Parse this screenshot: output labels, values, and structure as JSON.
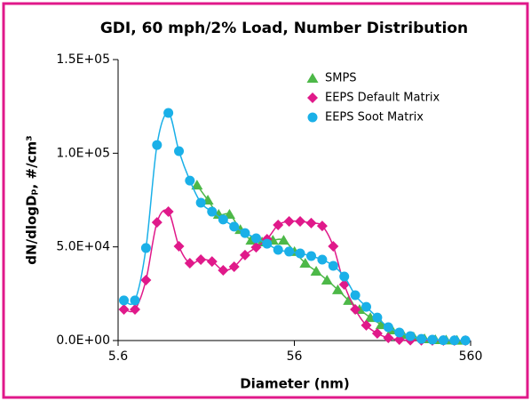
{
  "chart_data": {
    "type": "line",
    "title": "GDI, 60 mph/2% Load, Number Distribution",
    "x_label": "Diameter (nm)",
    "y_label": "dN/dlogDₚ, #/cm³",
    "xscale": "log",
    "xlim": [
      5.6,
      560
    ],
    "xticks": [
      5.6,
      56,
      560
    ],
    "ylim": [
      0,
      150000
    ],
    "yticks": [
      {
        "value": 0,
        "label": "0.0E+00"
      },
      {
        "value": 50000,
        "label": "5.0E+04"
      },
      {
        "value": 100000,
        "label": "1.0E+05"
      },
      {
        "value": 150000,
        "label": "1.5E+05"
      }
    ],
    "legend": "top-right",
    "series": [
      {
        "name": "SMPS",
        "color": "#4db848",
        "marker": "triangle",
        "x": [
          15.7,
          18.09,
          20.84,
          24.0,
          27.65,
          31.86,
          36.7,
          42.3,
          48.7,
          56.1,
          64.6,
          74.5,
          85.8,
          98.8,
          113.9,
          131.2,
          151.1,
          174.1,
          200.5,
          231,
          266.2,
          306.6,
          353.2,
          406.9,
          468.8
        ],
        "values": [
          83000,
          75000,
          67400,
          67400,
          59300,
          53600,
          52700,
          53600,
          53600,
          47500,
          41300,
          37000,
          32300,
          27100,
          21400,
          16600,
          12300,
          8500,
          5700,
          3300,
          1900,
          950,
          500,
          300,
          150
        ]
      },
      {
        "name": "EEPS Default Matrix",
        "color": "#e0198a",
        "marker": "diamond",
        "x": [
          6.04,
          6.98,
          8.06,
          9.31,
          10.8,
          12.4,
          14.3,
          16.5,
          19.1,
          22.1,
          25.5,
          29.4,
          34.0,
          39.2,
          45.3,
          52.3,
          60.4,
          69.8,
          80.6,
          93.1,
          107.5,
          124.1,
          143.3,
          165.5,
          191.1,
          220.7,
          254.8,
          294.3,
          339.8,
          392.4,
          453.2,
          523.3
        ],
        "values": [
          16600,
          16600,
          32300,
          63100,
          68800,
          50300,
          41300,
          43200,
          42200,
          37500,
          39400,
          45600,
          49800,
          54100,
          61700,
          63600,
          63600,
          62700,
          61200,
          50300,
          29900,
          16600,
          8100,
          3800,
          1400,
          500,
          200,
          100,
          50,
          0,
          0,
          0
        ]
      },
      {
        "name": "EEPS Soot Matrix",
        "color": "#1ab0e8",
        "marker": "circle",
        "x": [
          6.04,
          6.98,
          8.06,
          9.31,
          10.8,
          12.4,
          14.3,
          16.5,
          19.1,
          22.1,
          25.5,
          29.4,
          34.0,
          39.2,
          45.3,
          52.3,
          60.4,
          69.8,
          80.6,
          93.1,
          107.5,
          124.1,
          143.3,
          165.5,
          191.1,
          220.7,
          254.8,
          294.3,
          339.8,
          392.4,
          453.2,
          523.3
        ],
        "values": [
          21400,
          21400,
          49400,
          104400,
          121500,
          101100,
          85400,
          73600,
          68800,
          64600,
          60800,
          57400,
          54600,
          51700,
          48400,
          47500,
          46500,
          45100,
          43200,
          39900,
          34200,
          24200,
          18000,
          12300,
          7100,
          4300,
          2400,
          900,
          500,
          200,
          100,
          50
        ]
      }
    ]
  }
}
